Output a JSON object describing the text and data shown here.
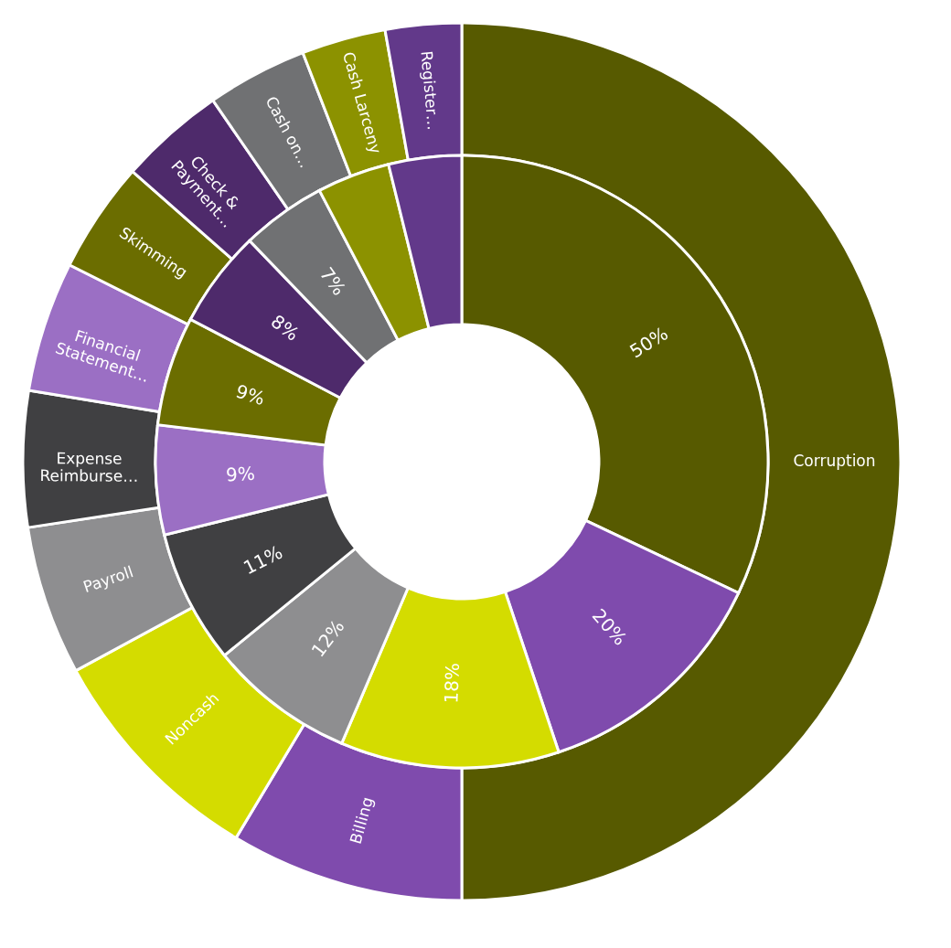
{
  "chart_data": {
    "type": "donut",
    "categories": [
      "Corruption",
      "Billing",
      "Noncash",
      "Payroll",
      "Expense\nReimburse…",
      "Financial\nStatement…",
      "Skimming",
      "Check &\nPayment…",
      "Cash on…",
      "Cash Larceny",
      "Register…"
    ],
    "colors": [
      "#575a00",
      "#7f4bad",
      "#d4dc00",
      "#8e8e90",
      "#404042",
      "#9b6fc4",
      "#6b6d00",
      "#4e2a6b",
      "#707173",
      "#8c9200",
      "#62398a"
    ],
    "series": [
      {
        "values": [
          50,
          8.6,
          8.5,
          5.5,
          5.0,
          4.8,
          4.1,
          3.9,
          3.7,
          3.1,
          2.8
        ]
      },
      {
        "values": [
          50,
          20,
          18,
          12,
          11,
          9,
          9,
          8,
          7,
          6,
          6
        ],
        "value_labels": [
          "50%",
          "20%",
          "18%",
          "12%",
          "11%",
          "9%",
          "9%",
          "8%",
          "7%",
          null,
          null
        ]
      }
    ],
    "legend": false
  }
}
